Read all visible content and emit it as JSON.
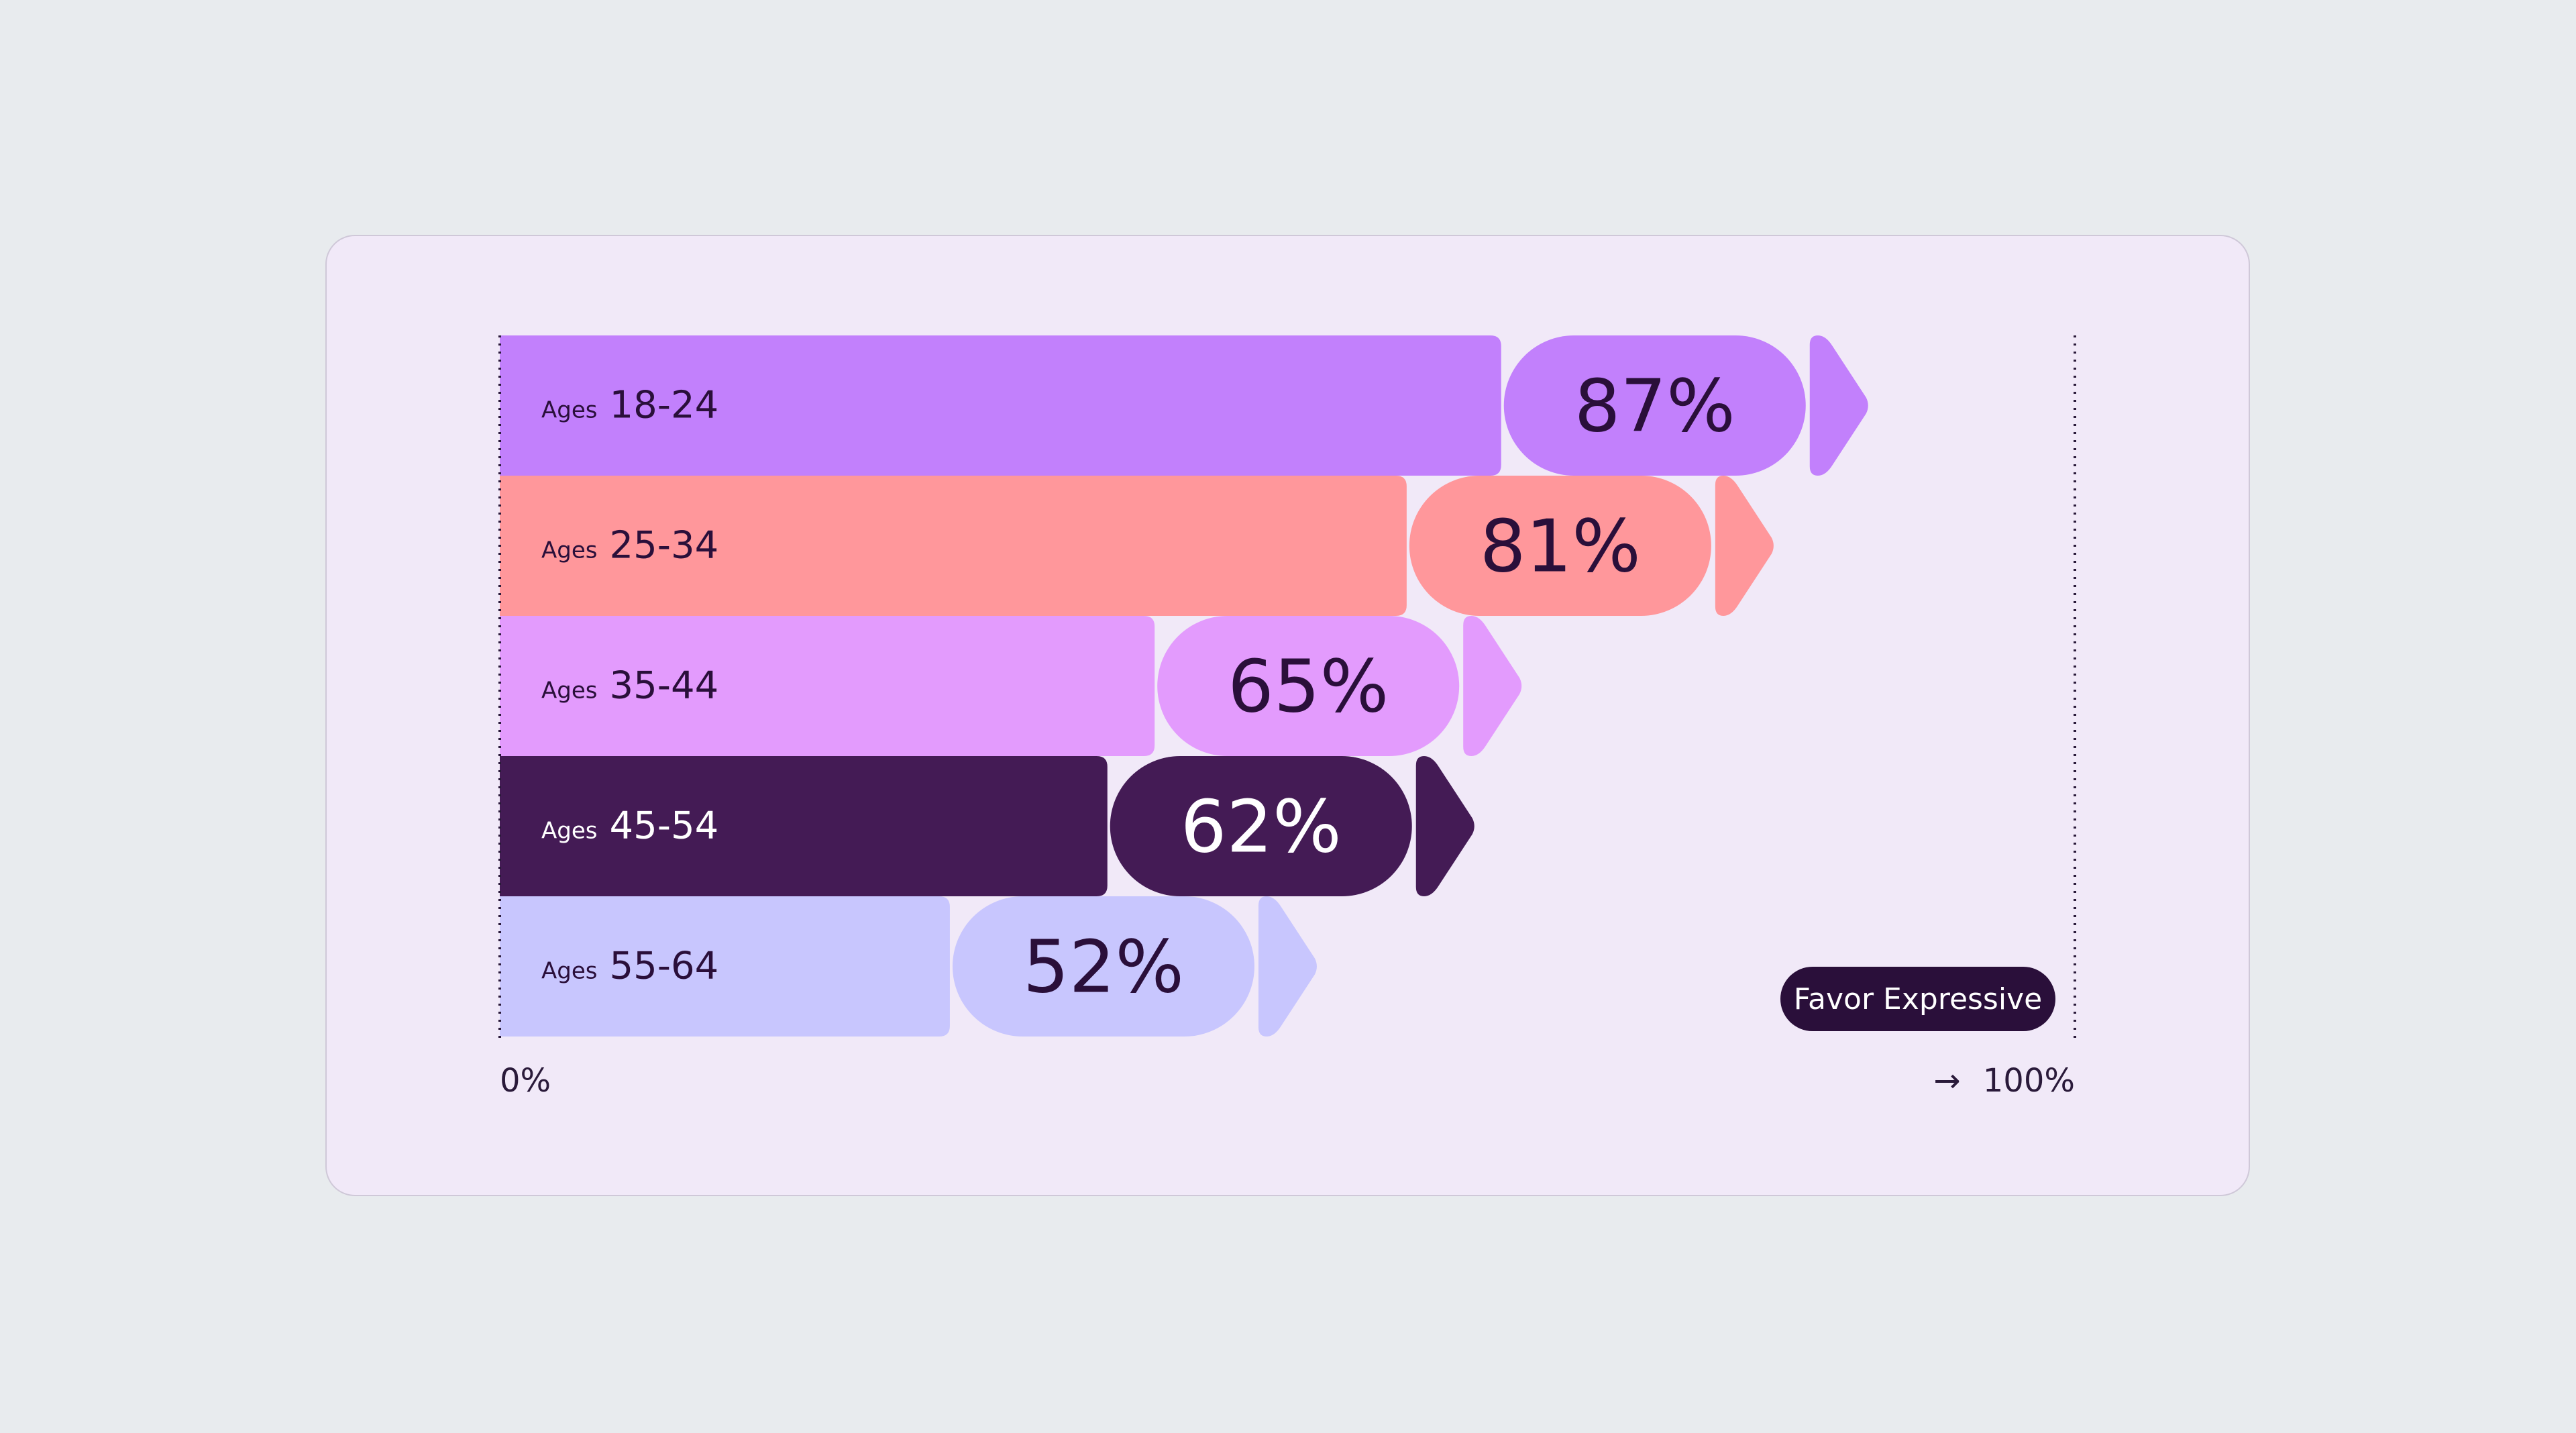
{
  "chart_data": {
    "type": "bar",
    "orientation": "horizontal",
    "categories": [
      "18-24",
      "25-34",
      "35-44",
      "45-54",
      "55-64"
    ],
    "category_prefix": "Ages",
    "series": [
      {
        "name": "Favor Expressive",
        "values": [
          87,
          81,
          65,
          62,
          52
        ]
      }
    ],
    "value_labels": [
      "87%",
      "81%",
      "65%",
      "62%",
      "52%"
    ],
    "bar_colors": [
      "#c280fc",
      "#ff979b",
      "#e39bfd",
      "#441b55",
      "#c8c6fe"
    ],
    "label_colors": [
      "#2a0f3a",
      "#2a0f3a",
      "#2a0f3a",
      "#ffffff",
      "#2a0f3a"
    ],
    "xlim": [
      0,
      100
    ],
    "x_tick_labels": {
      "min": "0%",
      "max": "100%"
    },
    "max_arrow": "→",
    "legend": {
      "label": "Favor Expressive",
      "position": "bottom-right",
      "color": "#2a0f3a"
    }
  }
}
